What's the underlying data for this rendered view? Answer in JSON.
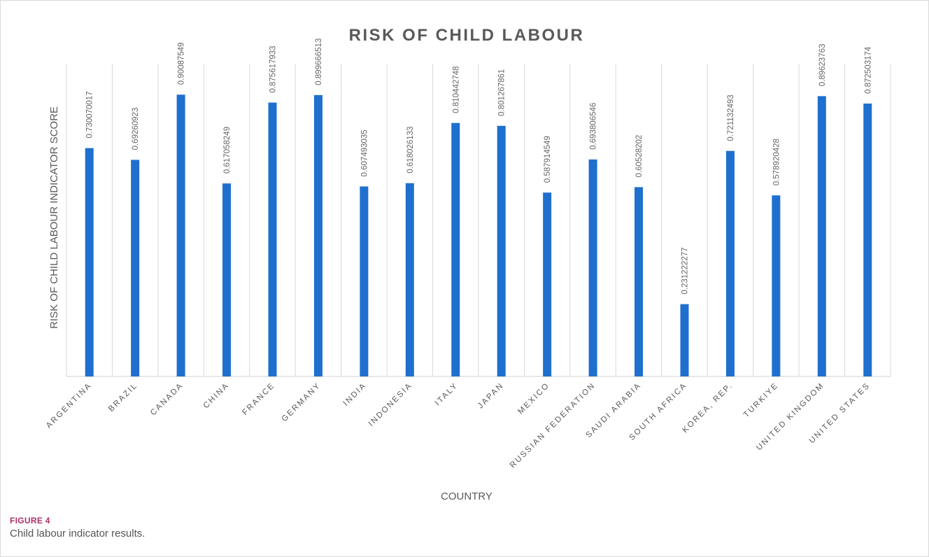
{
  "figure": {
    "label": "FIGURE 4",
    "caption": "Child labour indicator results."
  },
  "colors": {
    "bar": "#1f6fce",
    "grid": "#d9d9d9",
    "text": "#595959"
  },
  "chart_data": {
    "type": "bar",
    "title": "RISK OF CHILD LABOUR",
    "xlabel": "COUNTRY",
    "ylabel": "RISK OF CHILD LABOUR INDICATOR SCORE",
    "ylim": [
      0,
      1
    ],
    "grid": "vertical",
    "legend": "none",
    "categories": [
      "ARGENTINA",
      "BRAZIL",
      "CANADA",
      "CHINA",
      "FRANCE",
      "GERMANY",
      "INDIA",
      "INDONESIA",
      "ITALY",
      "JAPAN",
      "MEXICO",
      "RUSSIAN FEDERATION",
      "SAUDI ARABIA",
      "SOUTH AFRICA",
      "KOREA, REP.",
      "TURKIYE",
      "UNITED KINGDOM",
      "UNITED STATES"
    ],
    "values": [
      0.730070017,
      0.69260923,
      0.90087549,
      0.617058249,
      0.875617933,
      0.899666513,
      0.607493035,
      0.618026133,
      0.810442748,
      0.801267861,
      0.587914549,
      0.693806546,
      0.60528202,
      0.231222277,
      0.721132493,
      0.578920428,
      0.89623763,
      0.872503174
    ],
    "data_labels": [
      "0.730070017",
      "0.69260923",
      "0.90087549",
      "0.617058249",
      "0.875617933",
      "0.899666513",
      "0.607493035",
      "0.618026133",
      "0.810442748",
      "0.801267861",
      "0.587914549",
      "0.693806546",
      "0.60528202",
      "0.231222277",
      "0.721132493",
      "0.578920428",
      "0.89623763",
      "0.872503174"
    ]
  }
}
